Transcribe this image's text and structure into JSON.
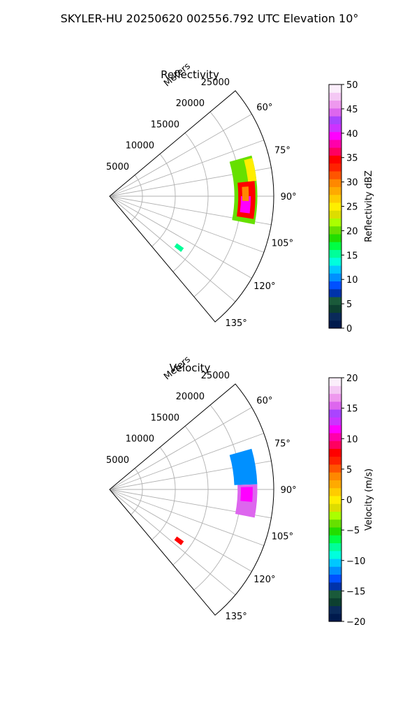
{
  "suptitle": "SKYLER-HU  20250620  002556.792 UTC Elevation 10°",
  "chart_data": [
    {
      "type": "heatmap",
      "projection": "polar-sector",
      "title": "Reflectivity",
      "radial_label": "Meters",
      "radial_ticks": [
        5000,
        10000,
        15000,
        20000,
        25000
      ],
      "radial_tick_labels": [
        "5000",
        "10000",
        "15000",
        "20000",
        "25000"
      ],
      "r_range": [
        0,
        25000
      ],
      "azimuth_range_deg": [
        50,
        140
      ],
      "azimuth_ticks": [
        60,
        75,
        90,
        105,
        120,
        135
      ],
      "azimuth_tick_labels": [
        "60°",
        "75°",
        "90°",
        "105°",
        "120°",
        "135°"
      ],
      "grid": true,
      "colorbar": {
        "label": "Reflectivity dBZ",
        "range": [
          0,
          50
        ],
        "ticks": [
          0,
          5,
          10,
          15,
          20,
          25,
          30,
          35,
          40,
          45,
          50
        ],
        "tick_labels": [
          "0",
          "5",
          "10",
          "15",
          "20",
          "25",
          "30",
          "35",
          "40",
          "45",
          "50"
        ],
        "colors": [
          "#001a4d",
          "#0a2a5a",
          "#0d4030",
          "#1a5a3a",
          "#0033aa",
          "#0050ff",
          "#0090ff",
          "#00c8ff",
          "#00ffdd",
          "#00ff99",
          "#00ff44",
          "#22dd00",
          "#66e000",
          "#aaff00",
          "#dddd00",
          "#ffee00",
          "#ffcc00",
          "#ffaa00",
          "#ff8800",
          "#ff5500",
          "#ff2200",
          "#ff0000",
          "#ff0060",
          "#ff00aa",
          "#ff00ff",
          "#cc33ff",
          "#aa44ff",
          "#dd66ee",
          "#ee99ee",
          "#f4c8f4",
          "#fbeefb"
        ]
      },
      "echoes": [
        {
          "r_range": [
            19000,
            22500
          ],
          "az_range": [
            74,
            101
          ],
          "value": 20
        },
        {
          "r_range": [
            19600,
            22200
          ],
          "az_range": [
            84,
            99
          ],
          "value": 35
        },
        {
          "r_range": [
            20000,
            21500
          ],
          "az_range": [
            90,
            97
          ],
          "value": 40
        },
        {
          "r_range": [
            20200,
            21200
          ],
          "az_range": [
            86,
            92
          ],
          "value": 30
        },
        {
          "r_range": [
            21200,
            22500
          ],
          "az_range": [
            75,
            84
          ],
          "value": 25
        },
        {
          "r_range": [
            12500,
            13800
          ],
          "az_range": [
            125,
            128
          ],
          "value": 15
        }
      ]
    },
    {
      "type": "heatmap",
      "projection": "polar-sector",
      "title": "Velocity",
      "radial_label": "Meters",
      "radial_ticks": [
        5000,
        10000,
        15000,
        20000,
        25000
      ],
      "radial_tick_labels": [
        "5000",
        "10000",
        "15000",
        "20000",
        "25000"
      ],
      "r_range": [
        0,
        25000
      ],
      "azimuth_range_deg": [
        50,
        140
      ],
      "azimuth_ticks": [
        60,
        75,
        90,
        105,
        120,
        135
      ],
      "azimuth_tick_labels": [
        "60°",
        "75°",
        "90°",
        "105°",
        "120°",
        "135°"
      ],
      "grid": true,
      "colorbar": {
        "label": "Velocity (m/s)",
        "range": [
          -20,
          20
        ],
        "ticks": [
          -20,
          -15,
          -10,
          -5,
          0,
          5,
          10,
          15,
          20
        ],
        "tick_labels": [
          "−20",
          "−15",
          "−10",
          "−5",
          "0",
          "5",
          "10",
          "15",
          "20"
        ],
        "colors": [
          "#001a4d",
          "#0a2a5a",
          "#0d4030",
          "#1a5a3a",
          "#0033aa",
          "#0050ff",
          "#0090ff",
          "#00c8ff",
          "#00ffdd",
          "#00ff99",
          "#00ff44",
          "#22dd00",
          "#66e000",
          "#aaff00",
          "#dddd00",
          "#ffee00",
          "#ffcc00",
          "#ffaa00",
          "#ff8800",
          "#ff5500",
          "#ff2200",
          "#ff0000",
          "#ff0060",
          "#ff00aa",
          "#ff00ff",
          "#cc33ff",
          "#aa44ff",
          "#dd66ee",
          "#ee99ee",
          "#f4c8f4",
          "#fbeefb"
        ]
      },
      "echoes": [
        {
          "r_range": [
            19000,
            22500
          ],
          "az_range": [
            74,
            88
          ],
          "value": -11
        },
        {
          "r_range": [
            19500,
            22500
          ],
          "az_range": [
            88,
            101
          ],
          "value": 15
        },
        {
          "r_range": [
            20000,
            21800
          ],
          "az_range": [
            89,
            95
          ],
          "value": 12
        },
        {
          "r_range": [
            12500,
            13800
          ],
          "az_range": [
            125,
            128
          ],
          "value": 8
        }
      ]
    }
  ]
}
